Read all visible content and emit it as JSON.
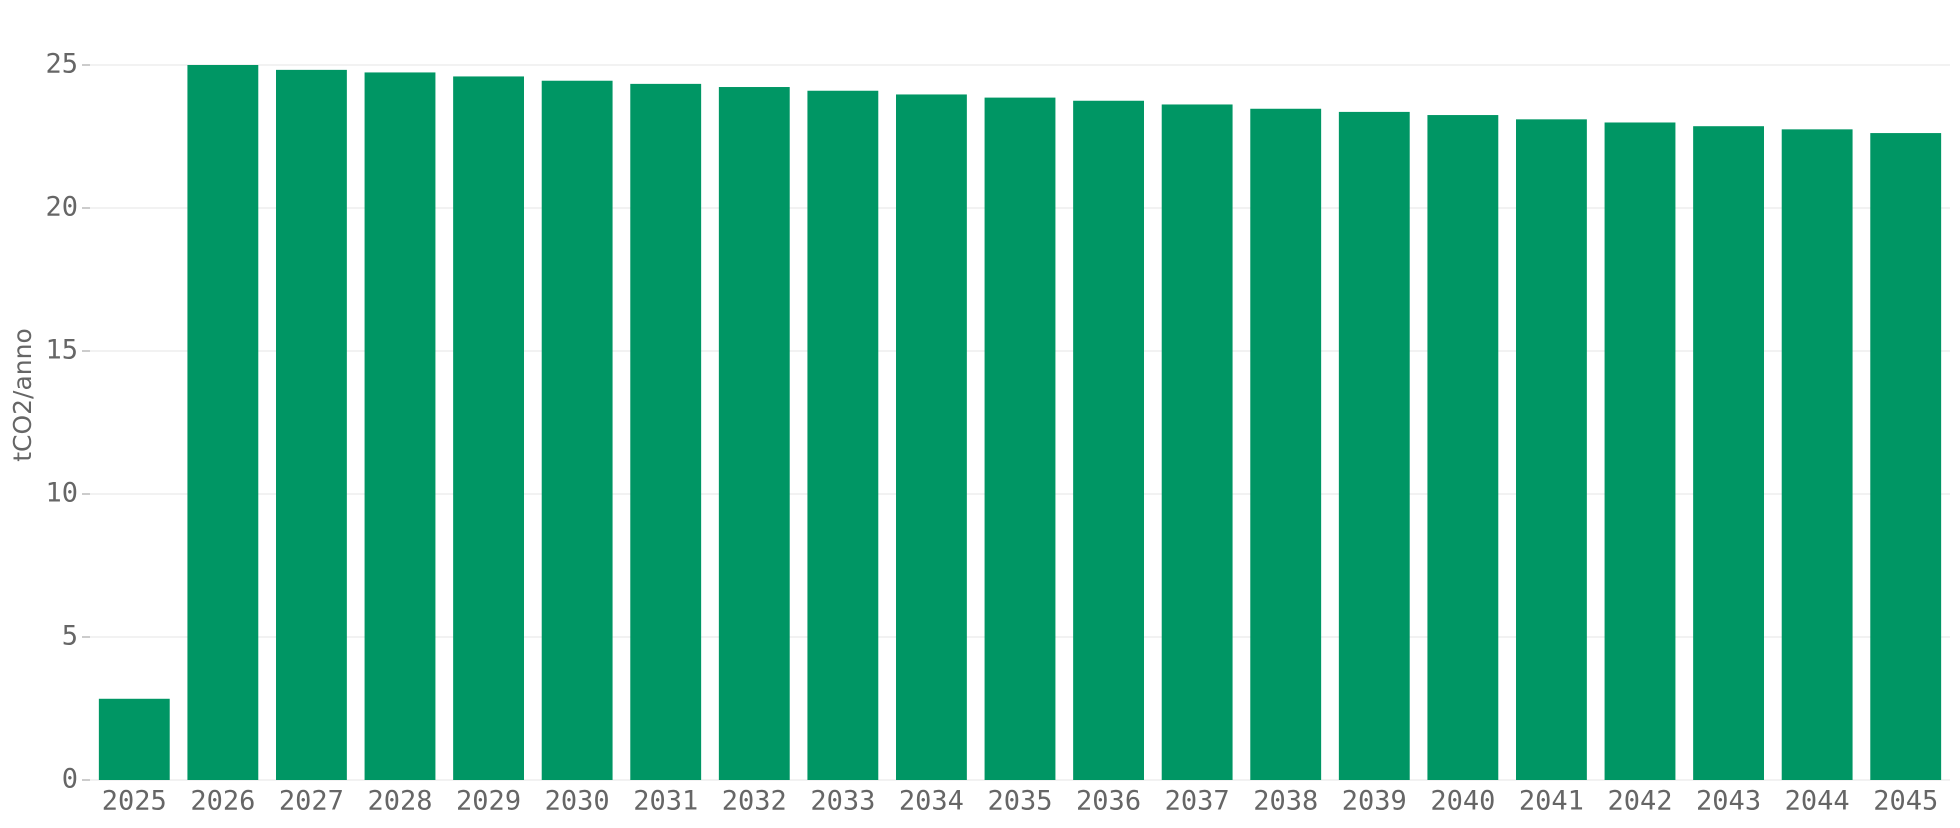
{
  "chart_data": {
    "type": "bar",
    "y_label": "tCO2/anno",
    "categories": [
      "2025",
      "2026",
      "2027",
      "2028",
      "2029",
      "2030",
      "2031",
      "2032",
      "2033",
      "2034",
      "2035",
      "2036",
      "2037",
      "2038",
      "2039",
      "2040",
      "2041",
      "2042",
      "2043",
      "2044",
      "2045"
    ],
    "values": [
      2.84,
      25.0,
      24.83,
      24.74,
      24.6,
      24.45,
      24.34,
      24.23,
      24.1,
      23.97,
      23.86,
      23.75,
      23.62,
      23.47,
      23.36,
      23.25,
      23.1,
      22.99,
      22.86,
      22.75,
      22.62
    ],
    "color": "#009664",
    "ylim": [
      0,
      25
    ],
    "yticks": [
      0,
      5,
      10,
      15,
      20,
      25
    ],
    "grid": true
  }
}
